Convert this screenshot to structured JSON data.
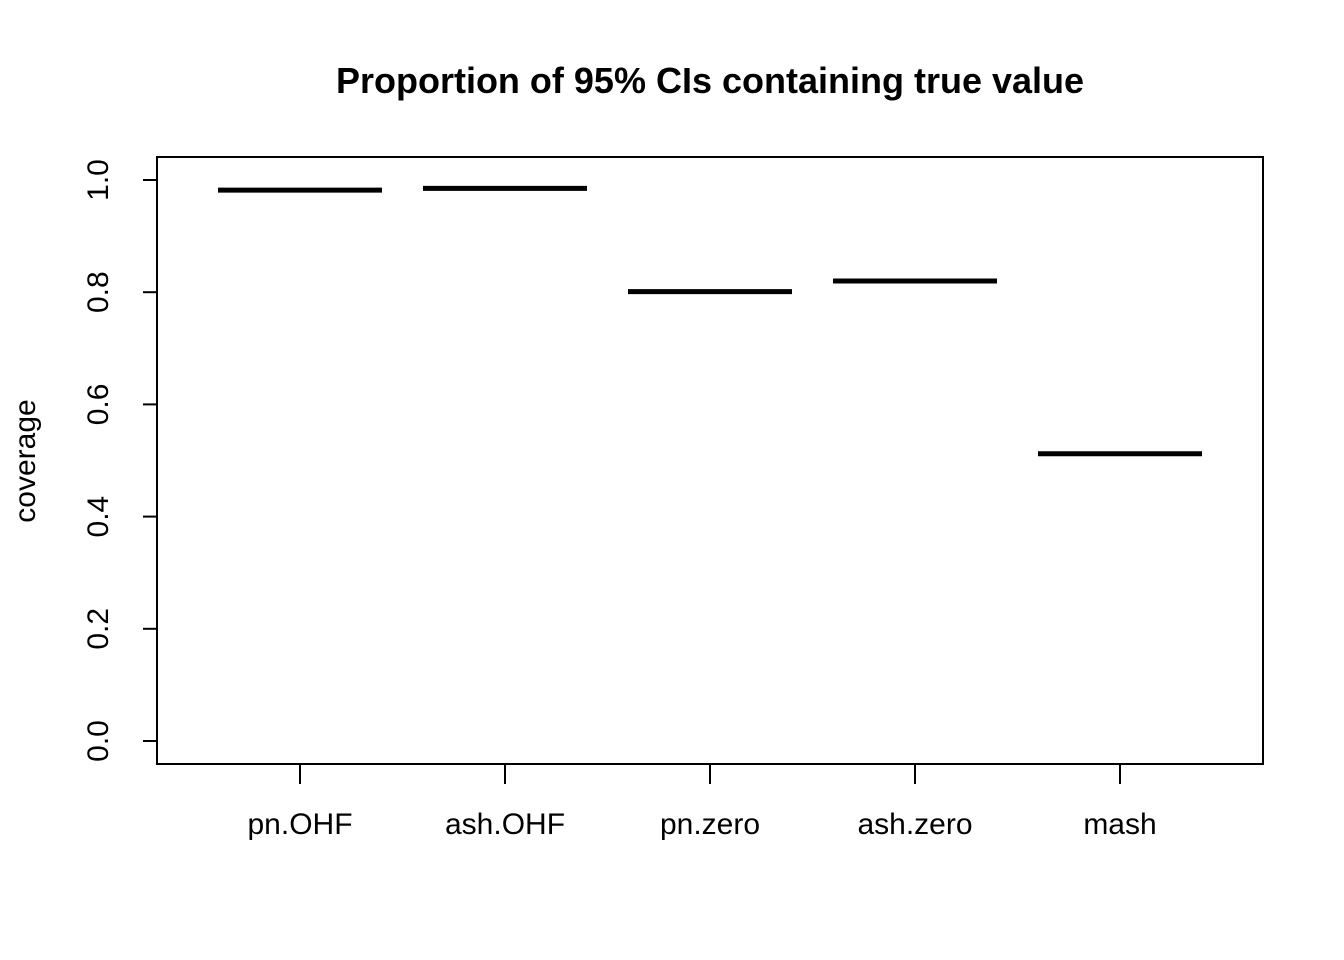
{
  "chart_data": {
    "type": "bar",
    "title": "Proportion of 95% CIs containing true value",
    "xlabel": "",
    "ylabel": "coverage",
    "categories": [
      "pn.OHF",
      "ash.OHF",
      "pn.zero",
      "ash.zero",
      "mash"
    ],
    "values": [
      0.982,
      0.985,
      0.801,
      0.82,
      0.512
    ],
    "ylim": [
      0.0,
      1.0
    ],
    "yticks": [
      "0.0",
      "0.2",
      "0.4",
      "0.6",
      "0.8",
      "1.0"
    ],
    "grid": false,
    "legend": "none"
  }
}
